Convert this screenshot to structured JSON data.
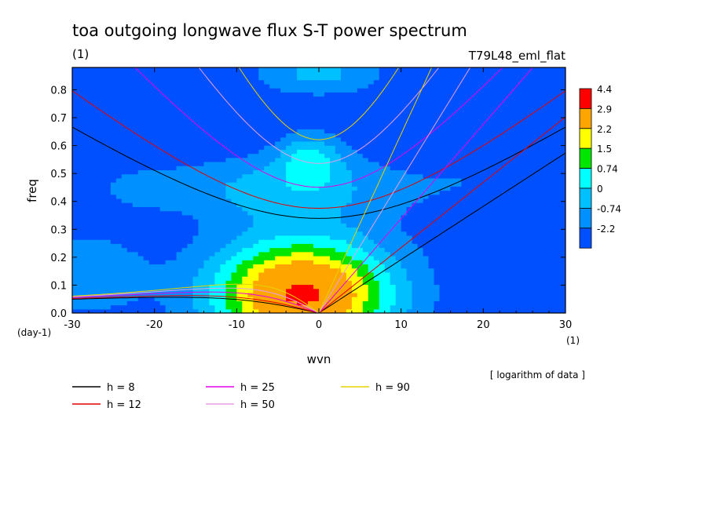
{
  "chart_data": {
    "type": "heatmap",
    "title": "toa outgoing longwave flux S-T power spectrum",
    "subtitle_left": "(1)",
    "subtitle_right": "T79L48_eml_flat",
    "xlabel": "wvn",
    "ylabel": "freq",
    "x_unit": "(1)",
    "y_unit": "(day-1)",
    "xlim": [
      -30,
      30
    ],
    "ylim": [
      0,
      0.88
    ],
    "xticks": [
      -30,
      -20,
      -10,
      0,
      10,
      20,
      30
    ],
    "yticks": [
      "0.0",
      "0.1",
      "0.2",
      "0.3",
      "0.4",
      "0.5",
      "0.6",
      "0.7",
      "0.8"
    ],
    "ytick_values": [
      0,
      0.1,
      0.2,
      0.3,
      0.4,
      0.5,
      0.6,
      0.7,
      0.8
    ],
    "colorbar": {
      "labels": [
        "4.4",
        "2.9",
        "2.2",
        "1.5",
        "0.74",
        "0",
        "-0.74",
        "-2.2"
      ],
      "colors": [
        "#ff0000",
        "#ffa500",
        "#ffff00",
        "#00e600",
        "#00ffff",
        "#00c0ff",
        "#0090ff",
        "#0050ff"
      ]
    },
    "field_note": "[ logarithm of data ]",
    "peak": {
      "x": -2,
      "y": 0.07,
      "value": 4.4
    },
    "dispersion_curves": [
      {
        "label": "h =  8",
        "h": 8,
        "color": "#000000"
      },
      {
        "label": "h = 12",
        "h": 12,
        "color": "#e60000"
      },
      {
        "label": "h = 25",
        "h": 25,
        "color": "#e600e6"
      },
      {
        "label": "h = 50",
        "h": 50,
        "color": "#e6a0e6"
      },
      {
        "label": "h = 90",
        "h": 90,
        "color": "#e6d200"
      }
    ]
  }
}
